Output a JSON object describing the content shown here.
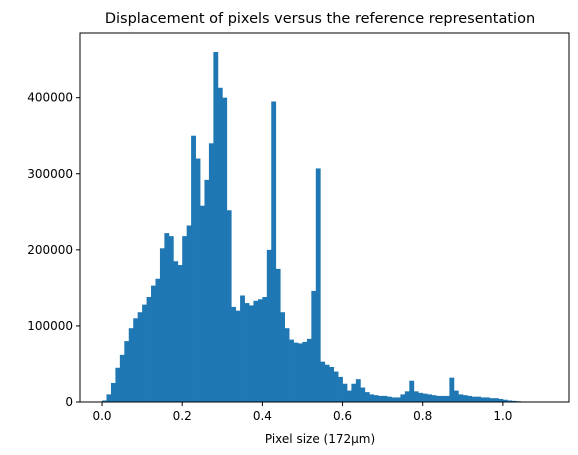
{
  "chart_data": {
    "type": "bar",
    "title": "Displacement of pixels versus the reference representation",
    "xlabel": "Pixel size (172µm)",
    "ylabel": "",
    "xlim": [
      -0.055,
      1.165
    ],
    "ylim": [
      0,
      485000
    ],
    "xticks": [
      0.0,
      0.2,
      0.4,
      0.6,
      0.8,
      1.0
    ],
    "xtick_labels": [
      "0.0",
      "0.2",
      "0.4",
      "0.6",
      "0.8",
      "1.0"
    ],
    "yticks": [
      0,
      100000,
      200000,
      300000,
      400000
    ],
    "ytick_labels": [
      "0",
      "100000",
      "200000",
      "300000",
      "400000"
    ],
    "grid": false,
    "legend": "none",
    "bar_color": "#1f77b4",
    "bin_start": 0.0,
    "bin_width": 0.01111,
    "values": [
      2000,
      10000,
      25000,
      45000,
      62000,
      80000,
      97000,
      110000,
      118000,
      128000,
      138000,
      153000,
      162000,
      202000,
      222000,
      218000,
      185000,
      180000,
      218000,
      232000,
      350000,
      320000,
      258000,
      292000,
      340000,
      460000,
      413000,
      400000,
      252000,
      125000,
      120000,
      140000,
      130000,
      127000,
      133000,
      135000,
      138000,
      200000,
      395000,
      175000,
      118000,
      97000,
      82000,
      78000,
      77000,
      79000,
      83000,
      146000,
      307000,
      53000,
      49000,
      46000,
      40000,
      33000,
      24000,
      15000,
      24000,
      30000,
      19000,
      13000,
      10000,
      9000,
      8000,
      8000,
      7000,
      6000,
      6000,
      10000,
      14000,
      28000,
      14000,
      12000,
      11000,
      10000,
      9000,
      8000,
      8000,
      8000,
      32000,
      15000,
      10000,
      9000,
      8000,
      7000,
      7000,
      6000,
      6000,
      5000,
      5000,
      4000,
      3000,
      2000,
      1500,
      1000,
      500,
      300,
      200,
      100,
      50,
      20
    ]
  }
}
